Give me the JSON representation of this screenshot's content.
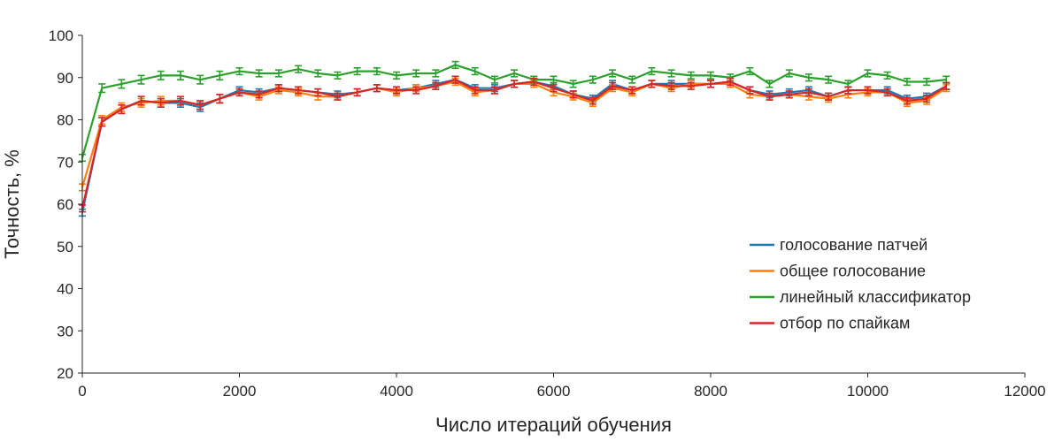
{
  "chart_data": {
    "type": "line",
    "title": "",
    "xlabel": "Число итераций обучения",
    "ylabel": "Точность, %",
    "xlim": [
      0,
      12000
    ],
    "ylim": [
      20,
      100
    ],
    "xticks": [
      0,
      2000,
      4000,
      6000,
      8000,
      10000,
      12000
    ],
    "yticks": [
      20,
      30,
      40,
      50,
      60,
      70,
      80,
      90,
      100
    ],
    "grid": false,
    "legend_position": "lower-right",
    "x": [
      0,
      250,
      500,
      750,
      1000,
      1250,
      1500,
      1750,
      2000,
      2250,
      2500,
      2750,
      3000,
      3250,
      3500,
      3750,
      4000,
      4250,
      4500,
      4750,
      5000,
      5250,
      5500,
      5750,
      6000,
      6250,
      6500,
      6750,
      7000,
      7250,
      7500,
      7750,
      8000,
      8250,
      8500,
      8750,
      9000,
      9250,
      9500,
      9750,
      10000,
      10250,
      10500,
      10750,
      11000
    ],
    "series": [
      {
        "name": "голосование патчей",
        "color": "#1f77b4",
        "values": [
          58,
          79.5,
          82.5,
          84.5,
          84,
          84,
          83,
          85,
          87,
          86.5,
          87.5,
          87,
          86.5,
          86,
          86.5,
          87.5,
          87,
          87.5,
          88.5,
          89.5,
          87.5,
          87.5,
          88.5,
          89,
          88,
          86,
          85,
          88.5,
          87,
          88.5,
          88.5,
          88.5,
          88.5,
          89,
          87,
          86,
          86.5,
          87,
          85.5,
          87,
          87,
          87,
          85,
          85.5,
          88
        ],
        "errors": [
          0.8,
          1,
          1,
          1,
          1,
          1,
          1,
          1,
          0.8,
          0.8,
          0.8,
          0.8,
          0.8,
          0.8,
          0.8,
          0.8,
          0.8,
          0.8,
          0.8,
          0.8,
          0.8,
          0.8,
          0.8,
          0.8,
          0.8,
          0.8,
          0.8,
          0.8,
          0.8,
          0.8,
          0.8,
          0.8,
          0.8,
          0.8,
          0.8,
          0.8,
          0.8,
          0.8,
          0.8,
          0.8,
          0.8,
          0.8,
          0.8,
          0.8,
          0.8
        ]
      },
      {
        "name": "общее голосование",
        "color": "#ff7f0e",
        "values": [
          64,
          80,
          83,
          84,
          84.5,
          84.5,
          83.5,
          85,
          86.5,
          85.5,
          87,
          86.5,
          85.5,
          85.5,
          86.5,
          87.5,
          86.5,
          87.5,
          88,
          89,
          86.5,
          87,
          88.5,
          88.5,
          86.5,
          85.5,
          84,
          87.5,
          86.5,
          88.5,
          87.5,
          88.5,
          88.5,
          88.5,
          86,
          85.5,
          86,
          85.5,
          85,
          86,
          86.5,
          86.5,
          84,
          84.5,
          87.5
        ],
        "errors": [
          0.8,
          1,
          1,
          1,
          1,
          1,
          1,
          1,
          0.8,
          0.8,
          0.8,
          0.8,
          0.8,
          0.8,
          0.8,
          0.8,
          0.8,
          0.8,
          0.8,
          0.8,
          0.8,
          0.8,
          0.8,
          0.8,
          0.8,
          0.8,
          0.8,
          0.8,
          0.8,
          0.8,
          0.8,
          0.8,
          0.8,
          0.8,
          0.8,
          0.8,
          0.8,
          0.8,
          0.8,
          0.8,
          0.8,
          0.8,
          0.8,
          0.8,
          0.8
        ]
      },
      {
        "name": "линейный классификатор",
        "color": "#2ca02c",
        "values": [
          71,
          87.5,
          88.5,
          89.5,
          90.5,
          90.5,
          89.5,
          90.5,
          91.5,
          91,
          91,
          92,
          91,
          90.5,
          91.5,
          91.5,
          90.5,
          91,
          91,
          93,
          91.5,
          89.5,
          91,
          89.5,
          89.5,
          88.5,
          89.5,
          91,
          89.5,
          91.5,
          91,
          90.5,
          90.5,
          90,
          91.5,
          88.5,
          91,
          90,
          89.5,
          88.5,
          91,
          90.5,
          89,
          89,
          89.5
        ],
        "errors": [
          0.8,
          1,
          1,
          1,
          1,
          1,
          1,
          1,
          0.8,
          0.8,
          0.8,
          0.8,
          0.8,
          0.8,
          0.8,
          0.8,
          0.8,
          0.8,
          0.8,
          0.8,
          0.8,
          0.8,
          0.8,
          0.8,
          0.8,
          0.8,
          0.8,
          0.8,
          0.8,
          0.8,
          0.8,
          0.8,
          0.8,
          0.8,
          0.8,
          0.8,
          0.8,
          0.8,
          0.8,
          0.8,
          0.8,
          0.8,
          0.8,
          0.8,
          0.8
        ]
      },
      {
        "name": "отбор по спайкам",
        "color": "#d62728",
        "values": [
          59,
          79.5,
          82.5,
          84.5,
          84,
          84.5,
          83.5,
          85,
          86.5,
          86,
          87.5,
          87,
          86.5,
          85.5,
          86.5,
          87.5,
          87,
          87,
          88,
          89.5,
          87,
          87,
          88.5,
          89,
          87.5,
          86,
          84.5,
          88,
          87,
          88.5,
          88,
          88,
          88.5,
          89,
          87,
          85.5,
          86,
          86.5,
          85.5,
          87,
          87,
          86.5,
          84.5,
          85,
          88
        ],
        "errors": [
          0.8,
          1,
          1,
          1,
          1,
          1,
          1,
          1,
          0.8,
          0.8,
          0.8,
          0.8,
          0.8,
          0.8,
          0.8,
          0.8,
          0.8,
          0.8,
          0.8,
          0.8,
          0.8,
          0.8,
          0.8,
          0.8,
          0.8,
          0.8,
          0.8,
          0.8,
          0.8,
          0.8,
          0.8,
          0.8,
          0.8,
          0.8,
          0.8,
          0.8,
          0.8,
          0.8,
          0.8,
          0.8,
          0.8,
          0.8,
          0.8,
          0.8,
          0.8
        ]
      }
    ]
  }
}
